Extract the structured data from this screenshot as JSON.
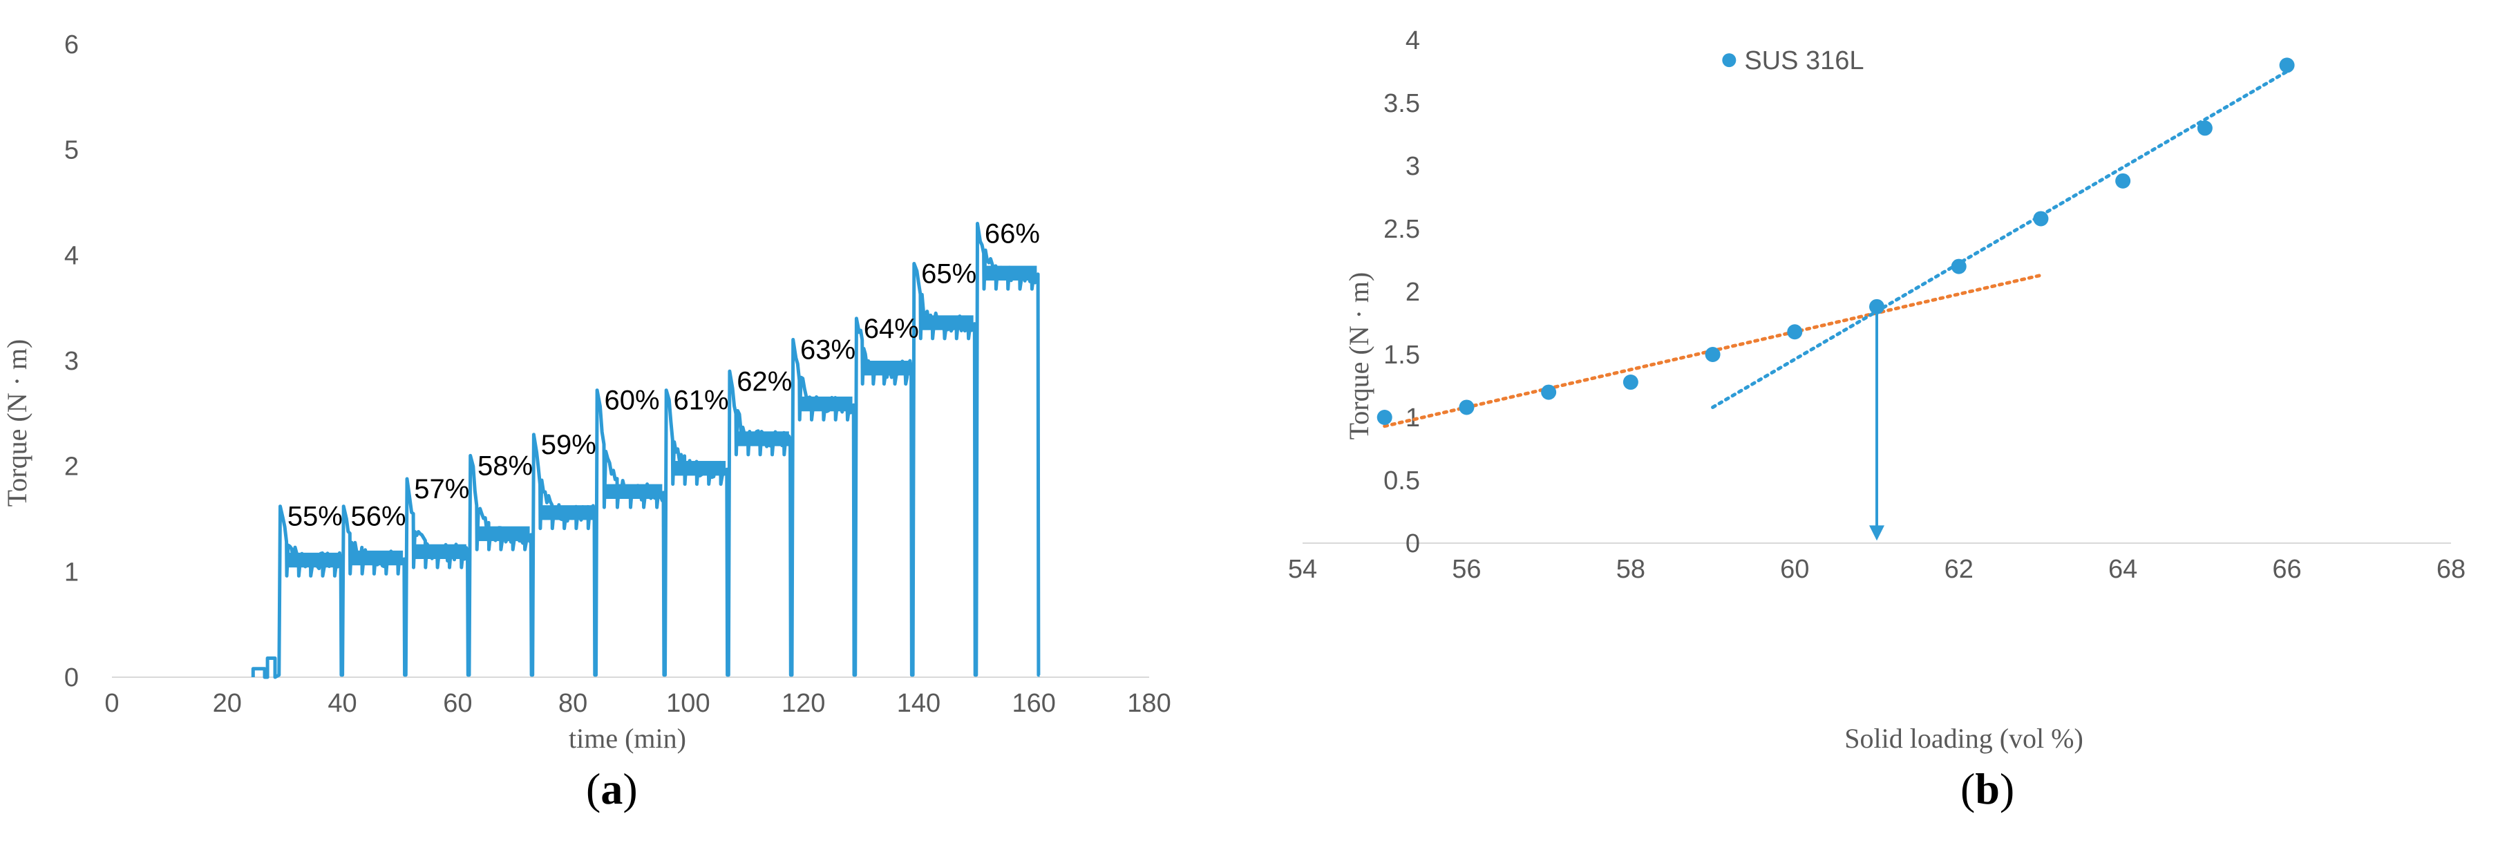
{
  "chart_data": [
    {
      "type": "line",
      "panel_label": "a",
      "xlabel": "time (min)",
      "ylabel": "Torque (N · m)",
      "xlim": [
        0,
        180
      ],
      "ylim": [
        0,
        6
      ],
      "x_ticks": [
        "0",
        "20",
        "40",
        "60",
        "80",
        "100",
        "120",
        "140",
        "160",
        "180"
      ],
      "y_ticks": [
        "0",
        "1",
        "2",
        "3",
        "4",
        "5",
        "6"
      ],
      "grid": false,
      "color": "#2e9bd6",
      "steps": [
        {
          "label": "55%",
          "start": 29,
          "end": 40,
          "peak": 1.62,
          "plateau": 1.1
        },
        {
          "label": "56%",
          "start": 40,
          "end": 51,
          "peak": 1.62,
          "plateau": 1.12
        },
        {
          "label": "57%",
          "start": 51,
          "end": 62,
          "peak": 1.88,
          "plateau": 1.18
        },
        {
          "label": "58%",
          "start": 62,
          "end": 73,
          "peak": 2.1,
          "plateau": 1.35
        },
        {
          "label": "59%",
          "start": 73,
          "end": 84,
          "peak": 2.3,
          "plateau": 1.55
        },
        {
          "label": "60%",
          "start": 84,
          "end": 96,
          "peak": 2.72,
          "plateau": 1.75
        },
        {
          "label": "61%",
          "start": 96,
          "end": 107,
          "peak": 2.72,
          "plateau": 1.97
        },
        {
          "label": "62%",
          "start": 107,
          "end": 118,
          "peak": 2.9,
          "plateau": 2.25
        },
        {
          "label": "63%",
          "start": 118,
          "end": 129,
          "peak": 3.2,
          "plateau": 2.58
        },
        {
          "label": "64%",
          "start": 129,
          "end": 139,
          "peak": 3.4,
          "plateau": 2.92
        },
        {
          "label": "65%",
          "start": 139,
          "end": 150,
          "peak": 3.92,
          "plateau": 3.35
        },
        {
          "label": "66%",
          "start": 150,
          "end": 161,
          "peak": 4.3,
          "plateau": 3.82
        }
      ]
    },
    {
      "type": "scatter",
      "panel_label": "b",
      "xlabel": "Solid loading (vol %)",
      "ylabel": "Torque (N · m)",
      "xlim": [
        54,
        68
      ],
      "ylim": [
        0,
        4
      ],
      "x_ticks": [
        "54",
        "56",
        "58",
        "60",
        "62",
        "64",
        "66",
        "68"
      ],
      "y_ticks": [
        "0",
        "0.5",
        "1",
        "1.5",
        "2",
        "2.5",
        "3",
        "3.5",
        "4"
      ],
      "grid": false,
      "legend_position": "top-center",
      "series": [
        {
          "name": "SUS 316L",
          "color": "#2e9bd6",
          "x": [
            55,
            56,
            57,
            58,
            59,
            60,
            61,
            62,
            63,
            64,
            65,
            66
          ],
          "y": [
            1.0,
            1.08,
            1.2,
            1.28,
            1.5,
            1.68,
            1.88,
            2.2,
            2.58,
            2.88,
            3.3,
            3.8
          ]
        }
      ],
      "trendlines": [
        {
          "color": "#ed7d31",
          "from": [
            55,
            0.93
          ],
          "to": [
            63,
            2.13
          ]
        },
        {
          "color": "#2e9bd6",
          "from": [
            59,
            1.08
          ],
          "to": [
            66,
            3.75
          ]
        }
      ],
      "arrow": {
        "x": 61,
        "from_y": 1.88,
        "to_y": 0.02,
        "color": "#2e9bd6"
      }
    }
  ]
}
